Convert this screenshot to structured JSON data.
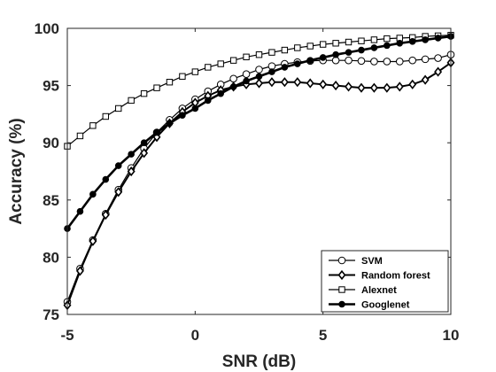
{
  "chart_data": {
    "type": "line",
    "xlabel": "SNR (dB)",
    "ylabel": "Accuracy (%)",
    "xlim": [
      -5,
      10
    ],
    "ylim": [
      75,
      100
    ],
    "xticks": [
      -5,
      0,
      5,
      10
    ],
    "yticks": [
      75,
      80,
      85,
      90,
      95,
      100
    ],
    "grid": false,
    "legend_position": "bottom-right",
    "x": [
      -5,
      -4.5,
      -4,
      -3.5,
      -3,
      -2.5,
      -2,
      -1.5,
      -1,
      -0.5,
      0,
      0.5,
      1,
      1.5,
      2,
      2.5,
      3,
      3.5,
      4,
      4.5,
      5,
      5.5,
      6,
      6.5,
      7,
      7.5,
      8,
      8.5,
      9,
      9.5,
      10
    ],
    "series": [
      {
        "name": "SVM",
        "marker": "circle",
        "line_width": 1.2,
        "values": [
          76.1,
          79.0,
          81.5,
          83.8,
          85.9,
          87.8,
          89.5,
          90.9,
          92.0,
          93.0,
          93.8,
          94.5,
          95.1,
          95.6,
          96.0,
          96.4,
          96.7,
          96.9,
          97.05,
          97.15,
          97.2,
          97.2,
          97.2,
          97.15,
          97.1,
          97.1,
          97.1,
          97.2,
          97.3,
          97.4,
          97.7
        ]
      },
      {
        "name": "Random forest",
        "marker": "diamond",
        "line_width": 2,
        "values": [
          75.8,
          78.8,
          81.4,
          83.7,
          85.7,
          87.5,
          89.1,
          90.5,
          91.7,
          92.7,
          93.5,
          94.1,
          94.6,
          94.9,
          95.1,
          95.2,
          95.3,
          95.3,
          95.3,
          95.2,
          95.1,
          95.0,
          94.9,
          94.8,
          94.8,
          94.8,
          94.9,
          95.1,
          95.5,
          96.2,
          97.0
        ]
      },
      {
        "name": "Alexnet",
        "marker": "square",
        "line_width": 1.2,
        "values": [
          89.7,
          90.6,
          91.5,
          92.3,
          93.0,
          93.7,
          94.3,
          94.8,
          95.3,
          95.8,
          96.2,
          96.6,
          96.9,
          97.2,
          97.5,
          97.7,
          97.9,
          98.1,
          98.3,
          98.45,
          98.6,
          98.7,
          98.8,
          98.9,
          99.0,
          99.1,
          99.15,
          99.2,
          99.3,
          99.35,
          99.4
        ]
      },
      {
        "name": "Googlenet",
        "marker": "filled-circle",
        "line_width": 2.6,
        "values": [
          82.5,
          84.0,
          85.5,
          86.8,
          88.0,
          89.0,
          90.0,
          90.9,
          91.7,
          92.4,
          93.0,
          93.7,
          94.3,
          94.9,
          95.4,
          95.8,
          96.2,
          96.6,
          96.9,
          97.2,
          97.45,
          97.7,
          97.9,
          98.1,
          98.3,
          98.5,
          98.7,
          98.85,
          99.0,
          99.15,
          99.3
        ]
      }
    ]
  }
}
